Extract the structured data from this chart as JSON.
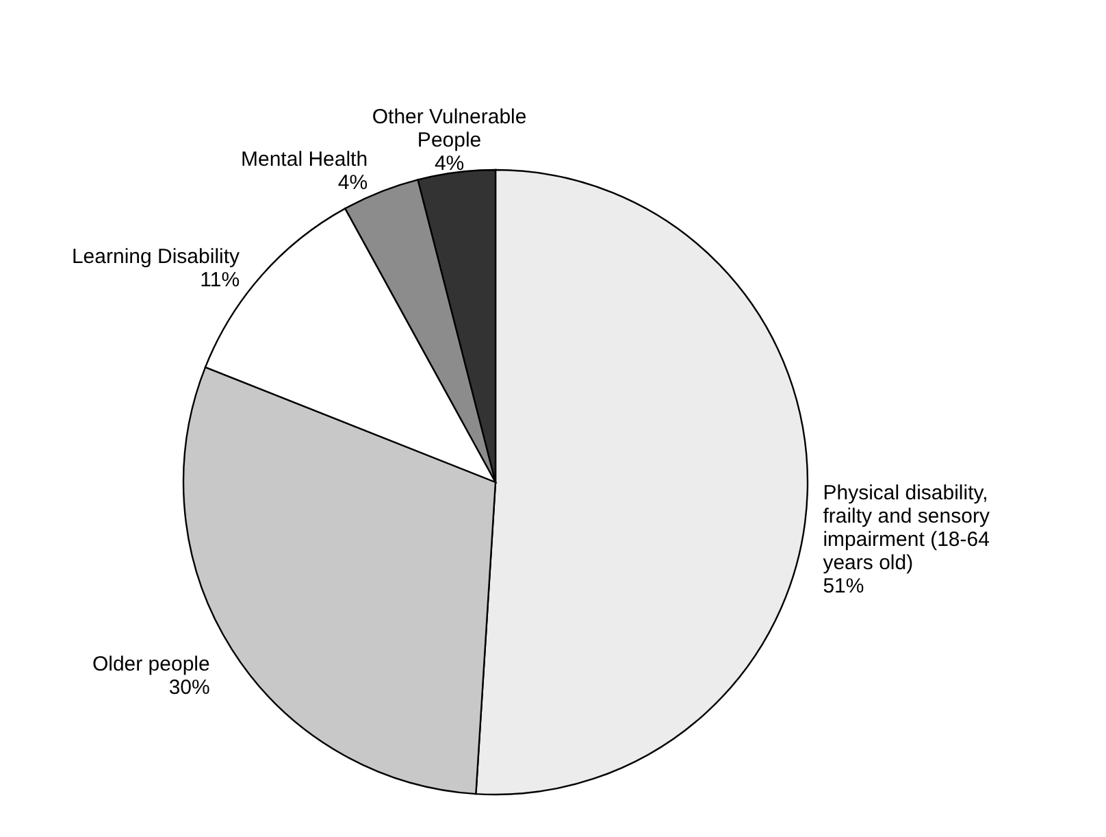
{
  "chart_data": {
    "type": "pie",
    "categories": [
      "Physical disability, frailty and sensory impairment (18-64 years old)",
      "Older people",
      "Learning Disability",
      "Mental Health",
      "Other Vulnerable People"
    ],
    "values": [
      51,
      30,
      11,
      4,
      4
    ],
    "value_labels": [
      "51%",
      "30%",
      "11%",
      "4%",
      "4%"
    ],
    "colors": [
      "#ececec",
      "#c8c8c8",
      "#ffffff",
      "#8c8c8c",
      "#333333"
    ]
  }
}
